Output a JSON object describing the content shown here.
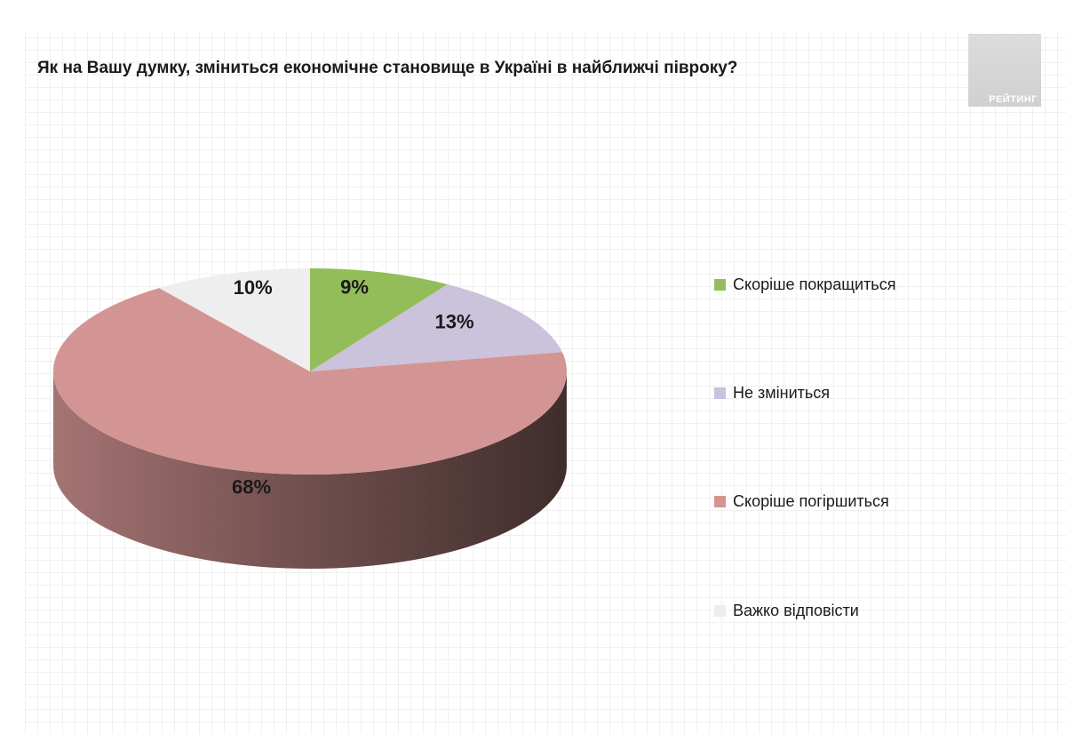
{
  "title": "Як на Вашу думку, зміниться економічне становище в Україні в найближчі півроку?",
  "logo": {
    "text": "РЕЙТИНГ"
  },
  "chart_data": {
    "type": "pie",
    "title": "Як на Вашу думку, зміниться економічне становище в Україні в найближчі півроку?",
    "categories": [
      "Скоріше покращиться",
      "Не зміниться",
      "Скоріше погіршиться",
      "Важко відповісти"
    ],
    "values": [
      9,
      13,
      68,
      10
    ],
    "labels": [
      "9%",
      "13%",
      "68%",
      "10%"
    ],
    "colors": [
      "#93bd58",
      "#cbc2dc",
      "#d39593",
      "#eeeeee"
    ],
    "legend_position": "right"
  }
}
